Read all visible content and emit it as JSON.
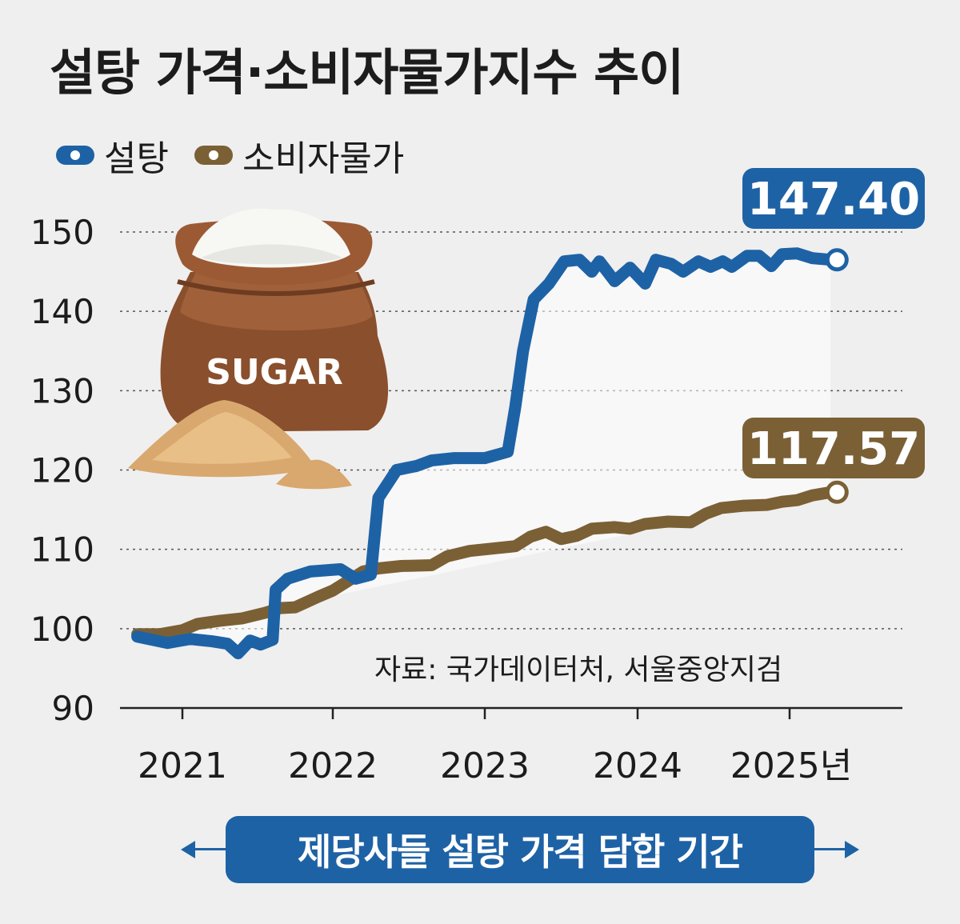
{
  "chart_data": {
    "type": "line",
    "title": "설탕 가격·소비자물가지수 추이",
    "ylim": [
      90,
      150
    ],
    "yticks": [
      "150",
      "140",
      "130",
      "120",
      "110",
      "100",
      "90"
    ],
    "xticks": [
      "2021",
      "2022",
      "2023",
      "2024",
      "2025년"
    ],
    "grid": "horizontal dotted",
    "legend_position": "top-left",
    "series": [
      {
        "name": "설탕",
        "color": "#1e62a6",
        "end_label": "147.40",
        "points": [
          [
            2020.7,
            99.0
          ],
          [
            2020.9,
            98.2
          ],
          [
            2021.05,
            98.7
          ],
          [
            2021.2,
            98.4
          ],
          [
            2021.3,
            98.1
          ],
          [
            2021.37,
            96.9
          ],
          [
            2021.45,
            98.5
          ],
          [
            2021.52,
            98.0
          ],
          [
            2021.6,
            98.6
          ],
          [
            2021.62,
            104.9
          ],
          [
            2021.7,
            106.3
          ],
          [
            2021.85,
            107.2
          ],
          [
            2022.05,
            107.5
          ],
          [
            2022.15,
            106.3
          ],
          [
            2022.25,
            106.8
          ],
          [
            2022.3,
            116.5
          ],
          [
            2022.42,
            120.0
          ],
          [
            2022.55,
            120.5
          ],
          [
            2022.65,
            121.2
          ],
          [
            2022.8,
            121.5
          ],
          [
            2023.0,
            121.5
          ],
          [
            2023.15,
            122.3
          ],
          [
            2023.2,
            128.0
          ],
          [
            2023.25,
            135.0
          ],
          [
            2023.32,
            141.5
          ],
          [
            2023.42,
            143.5
          ],
          [
            2023.52,
            146.3
          ],
          [
            2023.62,
            146.5
          ],
          [
            2023.7,
            145.0
          ],
          [
            2023.75,
            146.3
          ],
          [
            2023.85,
            143.8
          ],
          [
            2023.95,
            145.5
          ],
          [
            2024.05,
            143.5
          ],
          [
            2024.12,
            146.5
          ],
          [
            2024.22,
            146.0
          ],
          [
            2024.3,
            145.0
          ],
          [
            2024.4,
            146.3
          ],
          [
            2024.48,
            145.6
          ],
          [
            2024.56,
            146.3
          ],
          [
            2024.62,
            145.6
          ],
          [
            2024.72,
            147.0
          ],
          [
            2024.8,
            147.0
          ],
          [
            2024.88,
            145.7
          ],
          [
            2024.95,
            147.2
          ],
          [
            2025.05,
            147.3
          ],
          [
            2025.15,
            146.7
          ],
          [
            2025.27,
            146.5
          ]
        ]
      },
      {
        "name": "소비자물가",
        "color": "#7b6035",
        "end_label": "117.57",
        "points": [
          [
            2020.7,
            99.3
          ],
          [
            2020.85,
            99.3
          ],
          [
            2021.0,
            99.8
          ],
          [
            2021.1,
            100.6
          ],
          [
            2021.25,
            101.0
          ],
          [
            2021.4,
            101.3
          ],
          [
            2021.55,
            102.0
          ],
          [
            2021.65,
            102.6
          ],
          [
            2021.75,
            102.7
          ],
          [
            2021.9,
            104.0
          ],
          [
            2022.0,
            104.8
          ],
          [
            2022.1,
            106.0
          ],
          [
            2022.2,
            107.2
          ],
          [
            2022.3,
            107.6
          ],
          [
            2022.45,
            107.9
          ],
          [
            2022.65,
            108.0
          ],
          [
            2022.75,
            109.1
          ],
          [
            2022.9,
            109.8
          ],
          [
            2023.1,
            110.2
          ],
          [
            2023.2,
            110.4
          ],
          [
            2023.3,
            111.6
          ],
          [
            2023.4,
            112.2
          ],
          [
            2023.5,
            111.3
          ],
          [
            2023.6,
            111.7
          ],
          [
            2023.7,
            112.6
          ],
          [
            2023.85,
            112.8
          ],
          [
            2023.95,
            112.6
          ],
          [
            2024.05,
            113.2
          ],
          [
            2024.2,
            113.5
          ],
          [
            2024.35,
            113.4
          ],
          [
            2024.45,
            114.5
          ],
          [
            2024.55,
            115.2
          ],
          [
            2024.7,
            115.5
          ],
          [
            2024.85,
            115.6
          ],
          [
            2024.95,
            116.0
          ],
          [
            2025.05,
            116.2
          ],
          [
            2025.15,
            116.8
          ],
          [
            2025.27,
            117.2
          ]
        ]
      }
    ]
  },
  "legend": [
    {
      "label": "설탕",
      "color": "#1e62a6"
    },
    {
      "label": "소비자물가",
      "color": "#7b6035"
    }
  ],
  "illustration": {
    "bag_text": "SUGAR"
  },
  "source_note": "자료: 국가데이터처, 서울중앙지검",
  "period_banner": {
    "label": "제당사들 설탕 가격 담합 기간",
    "color": "#1e62a6"
  }
}
